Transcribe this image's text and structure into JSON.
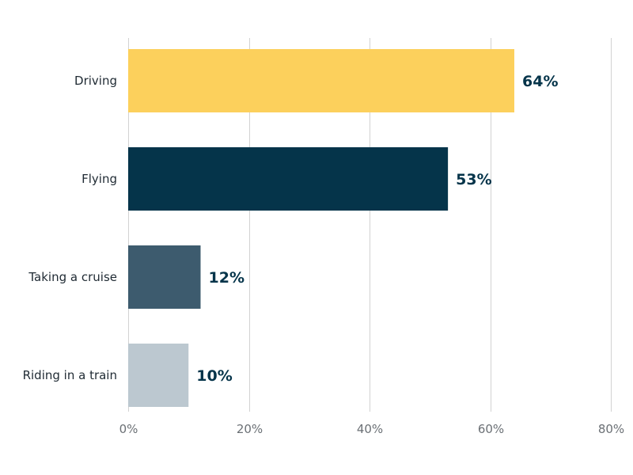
{
  "chart_data": {
    "type": "bar",
    "orientation": "horizontal",
    "title": "",
    "xlabel": "",
    "ylabel": "",
    "categories": [
      "Driving",
      "Flying",
      "Taking a cruise",
      "Riding in a train"
    ],
    "values": [
      64,
      53,
      12,
      10
    ],
    "data_labels": [
      "64%",
      "53%",
      "12%",
      "10%"
    ],
    "bar_colors": [
      "#FCD05C",
      "#05344A",
      "#3D5B6E",
      "#BCC8D0"
    ],
    "xlim": [
      0,
      80
    ],
    "x_ticks": [
      0,
      20,
      40,
      60,
      80
    ],
    "x_tick_labels": [
      "0%",
      "20%",
      "40%",
      "60%",
      "80%"
    ],
    "grid": "vertical",
    "legend": "none"
  }
}
